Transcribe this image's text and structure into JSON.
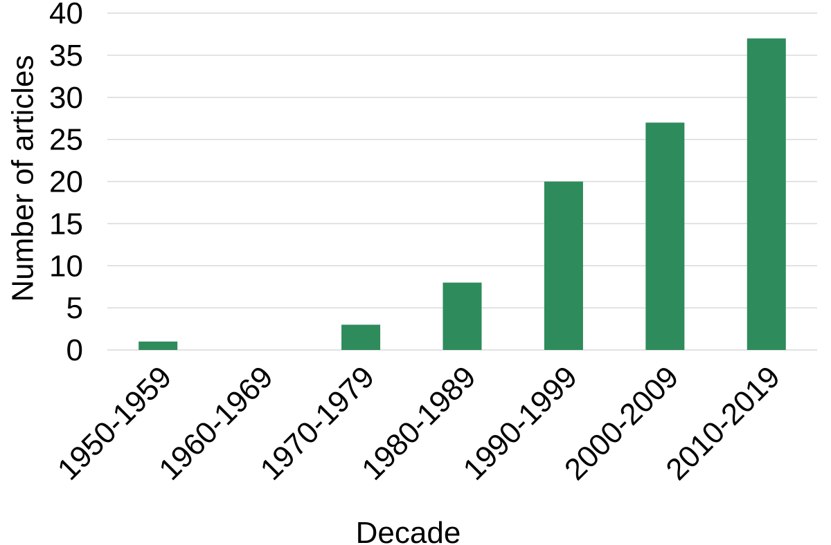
{
  "chart_data": {
    "type": "bar",
    "categories": [
      "1950-1959",
      "1960-1969",
      "1970-1979",
      "1980-1989",
      "1990-1999",
      "2000-2009",
      "2010-2019"
    ],
    "values": [
      1,
      0,
      3,
      8,
      20,
      27,
      37
    ],
    "xlabel": "Decade",
    "ylabel": "Number of articles",
    "ylim": [
      0,
      40
    ],
    "yticks": [
      0,
      5,
      10,
      15,
      20,
      25,
      30,
      35,
      40
    ],
    "grid": true,
    "bar_color": "#2e8b5c",
    "grid_color": "#d9d9d9",
    "legend": "none"
  }
}
